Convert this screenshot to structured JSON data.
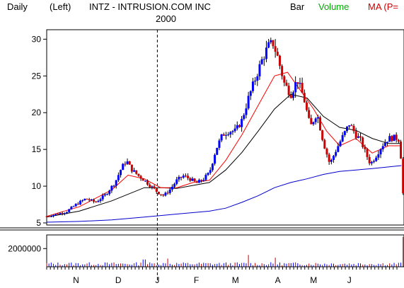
{
  "header": {
    "period": "Daily",
    "axis_side": "(Left)",
    "title": "INTZ - INTRUSION.COM INC",
    "year_label": "2000",
    "legend_bar": "Bar",
    "legend_volume": "Volume",
    "legend_ma": "MA (P="
  },
  "colors": {
    "up_bar": "#0000ff",
    "down_bar": "#cc0000",
    "volume_legend": "#00aa00",
    "ma_legend": "#cc0000",
    "ma_short": "#ff0000",
    "ma_mid": "#000000",
    "ma_long": "#0000cc"
  },
  "chart_data": [
    {
      "type": "candlestick",
      "title": "INTZ - INTRUSION.COM INC",
      "ylim": [
        5,
        31
      ],
      "y_ticks": [
        "5",
        "10",
        "15",
        "20",
        "25",
        "30"
      ],
      "y_tick_values": [
        5,
        10,
        15,
        20,
        25,
        30
      ],
      "x_month_labels": [
        "N",
        "D",
        "J",
        "F",
        "M",
        "A",
        "M",
        "J"
      ],
      "x_month_positions": [
        0.09,
        0.22,
        0.34,
        0.46,
        0.58,
        0.71,
        0.82,
        0.93
      ],
      "year_divider_position": 0.34,
      "price_points": [
        [
          0,
          5.9
        ],
        [
          0.03,
          6.2
        ],
        [
          0.06,
          6.5
        ],
        [
          0.09,
          7.5
        ],
        [
          0.12,
          8.3
        ],
        [
          0.15,
          7.8
        ],
        [
          0.18,
          8.8
        ],
        [
          0.21,
          10.5
        ],
        [
          0.23,
          12.5
        ],
        [
          0.245,
          13.5
        ],
        [
          0.26,
          12.3
        ],
        [
          0.28,
          11.5
        ],
        [
          0.3,
          10.8
        ],
        [
          0.32,
          10.0
        ],
        [
          0.34,
          9.2
        ],
        [
          0.36,
          8.7
        ],
        [
          0.38,
          9.6
        ],
        [
          0.4,
          10.8
        ],
        [
          0.42,
          11.4
        ],
        [
          0.44,
          11.0
        ],
        [
          0.46,
          10.4
        ],
        [
          0.48,
          10.9
        ],
        [
          0.5,
          11.8
        ],
        [
          0.52,
          15.0
        ],
        [
          0.54,
          17.0
        ],
        [
          0.56,
          17.5
        ],
        [
          0.58,
          17.5
        ],
        [
          0.6,
          19.0
        ],
        [
          0.62,
          22.0
        ],
        [
          0.64,
          24.5
        ],
        [
          0.66,
          27.0
        ],
        [
          0.68,
          29.0
        ],
        [
          0.695,
          29.5
        ],
        [
          0.71,
          27.5
        ],
        [
          0.73,
          24.0
        ],
        [
          0.75,
          22.5
        ],
        [
          0.77,
          24.5
        ],
        [
          0.79,
          22.0
        ],
        [
          0.81,
          18.0
        ],
        [
          0.83,
          20.0
        ],
        [
          0.85,
          16.0
        ],
        [
          0.87,
          13.0
        ],
        [
          0.89,
          15.0
        ],
        [
          0.91,
          16.8
        ],
        [
          0.93,
          18.5
        ],
        [
          0.95,
          17.0
        ],
        [
          0.965,
          16.2
        ],
        [
          0.98,
          14.5
        ],
        [
          0.995,
          13.0
        ],
        [
          1.01,
          14.0
        ],
        [
          1.03,
          15.5
        ],
        [
          1.05,
          16.5
        ],
        [
          1.07,
          16.6
        ],
        [
          1.085,
          16.3
        ],
        [
          1.095,
          9.0
        ]
      ],
      "ma_short": [
        [
          0,
          5.9
        ],
        [
          0.1,
          7.2
        ],
        [
          0.2,
          9.5
        ],
        [
          0.25,
          11.5
        ],
        [
          0.3,
          11.0
        ],
        [
          0.35,
          9.8
        ],
        [
          0.4,
          9.8
        ],
        [
          0.45,
          10.5
        ],
        [
          0.5,
          10.8
        ],
        [
          0.55,
          13.5
        ],
        [
          0.6,
          17.0
        ],
        [
          0.65,
          21.0
        ],
        [
          0.7,
          25.0
        ],
        [
          0.74,
          25.5
        ],
        [
          0.78,
          23.0
        ],
        [
          0.82,
          20.5
        ],
        [
          0.86,
          17.5
        ],
        [
          0.9,
          15.5
        ],
        [
          0.95,
          16.5
        ],
        [
          1.0,
          14.5
        ],
        [
          1.05,
          15.5
        ],
        [
          1.09,
          15.5
        ]
      ],
      "ma_mid": [
        [
          0,
          5.8
        ],
        [
          0.1,
          6.6
        ],
        [
          0.2,
          8.0
        ],
        [
          0.3,
          9.8
        ],
        [
          0.35,
          9.8
        ],
        [
          0.4,
          9.7
        ],
        [
          0.45,
          10.1
        ],
        [
          0.5,
          10.5
        ],
        [
          0.55,
          12.2
        ],
        [
          0.6,
          14.6
        ],
        [
          0.65,
          17.5
        ],
        [
          0.7,
          20.5
        ],
        [
          0.75,
          22.5
        ],
        [
          0.8,
          22.0
        ],
        [
          0.85,
          19.5
        ],
        [
          0.9,
          18.0
        ],
        [
          0.95,
          17.6
        ],
        [
          1.0,
          16.5
        ],
        [
          1.05,
          15.8
        ],
        [
          1.09,
          15.8
        ]
      ],
      "ma_long": [
        [
          0,
          5.1
        ],
        [
          0.1,
          5.2
        ],
        [
          0.2,
          5.4
        ],
        [
          0.3,
          5.8
        ],
        [
          0.4,
          6.2
        ],
        [
          0.5,
          6.6
        ],
        [
          0.55,
          7.0
        ],
        [
          0.6,
          7.8
        ],
        [
          0.65,
          8.7
        ],
        [
          0.7,
          9.8
        ],
        [
          0.75,
          10.5
        ],
        [
          0.8,
          11.0
        ],
        [
          0.85,
          11.6
        ],
        [
          0.9,
          12.0
        ],
        [
          1.0,
          12.4
        ],
        [
          1.09,
          12.8
        ]
      ]
    },
    {
      "type": "bar",
      "title": "Volume",
      "y_ticks": [
        "2000000"
      ],
      "y_tick_values": [
        2000000
      ],
      "ylim": [
        0,
        3500000
      ],
      "spike_positions": [
        0.3,
        0.37,
        0.62,
        0.7,
        1.095
      ],
      "spike_values": [
        800000,
        900000,
        1300000,
        1000000,
        3300000
      ]
    }
  ]
}
